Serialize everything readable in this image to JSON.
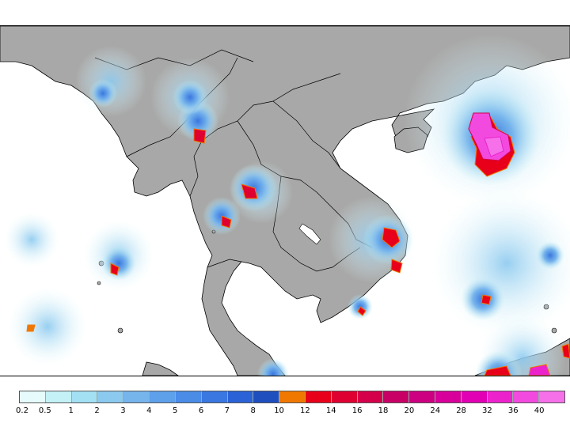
{
  "map": {
    "land_color": "#a8a8a8",
    "sea_color": "#ffffff",
    "border_color": "#000000"
  },
  "legend": {
    "labels": [
      "0.2",
      "0.5",
      "1",
      "2",
      "3",
      "4",
      "5",
      "6",
      "7",
      "8",
      "10",
      "12",
      "14",
      "16",
      "18",
      "20",
      "24",
      "28",
      "32",
      "36",
      "40"
    ],
    "colors": [
      "#e6fbfb",
      "#c4f1f5",
      "#a3e0f3",
      "#8cc9ef",
      "#76b4ec",
      "#5ea0ea",
      "#4a8ce6",
      "#3a77e0",
      "#2b62d6",
      "#1f4fbf",
      "#f07800",
      "#e8001a",
      "#de0030",
      "#d4004a",
      "#c80066",
      "#cc0080",
      "#d8009a",
      "#e200b4",
      "#ec22cc",
      "#f24ade",
      "#f670ea"
    ]
  }
}
